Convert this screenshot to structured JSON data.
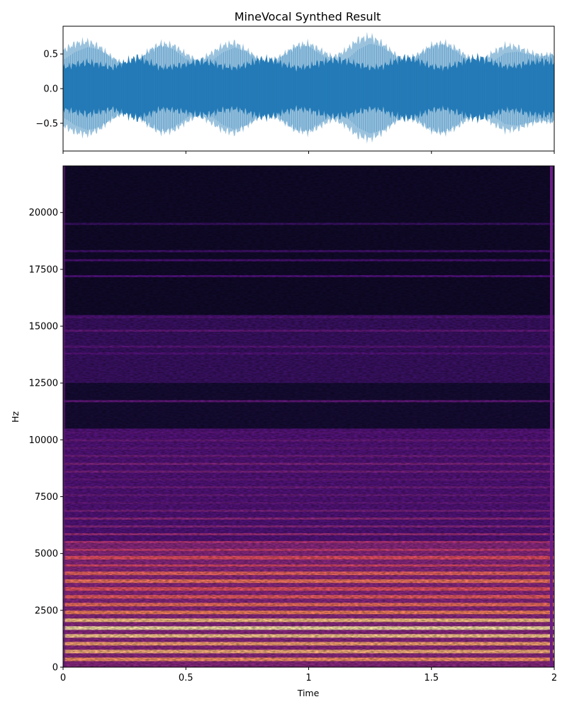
{
  "title": "MineVocal Synthed Result",
  "chart_data": [
    {
      "type": "area",
      "name": "waveform",
      "xlim": [
        0,
        2
      ],
      "ylim": [
        -0.9,
        0.9
      ],
      "y_ticks": [
        {
          "value": 0.5,
          "label": "0.5"
        },
        {
          "value": 0.0,
          "label": "0.0"
        },
        {
          "value": -0.5,
          "label": "−0.5"
        }
      ],
      "x_ticks": [
        0,
        0.5,
        1,
        1.5,
        2
      ],
      "show_x_tick_labels": false,
      "envelope": {
        "x": [
          0,
          0.05,
          0.1,
          0.15,
          0.2,
          0.25,
          0.3,
          0.35,
          0.4,
          0.45,
          0.5,
          0.55,
          0.6,
          0.65,
          0.7,
          0.75,
          0.8,
          0.85,
          0.9,
          0.95,
          1.0,
          1.05,
          1.1,
          1.15,
          1.2,
          1.25,
          1.3,
          1.35,
          1.4,
          1.45,
          1.5,
          1.55,
          1.6,
          1.65,
          1.7,
          1.75,
          1.8,
          1.85,
          1.9,
          1.95,
          2.0
        ],
        "outer": [
          0.55,
          0.65,
          0.68,
          0.6,
          0.45,
          0.35,
          0.4,
          0.55,
          0.65,
          0.62,
          0.5,
          0.4,
          0.5,
          0.62,
          0.66,
          0.55,
          0.42,
          0.38,
          0.5,
          0.62,
          0.65,
          0.55,
          0.45,
          0.55,
          0.7,
          0.75,
          0.65,
          0.5,
          0.4,
          0.5,
          0.62,
          0.66,
          0.58,
          0.45,
          0.4,
          0.52,
          0.62,
          0.6,
          0.52,
          0.48,
          0.5
        ],
        "inner": [
          0.3,
          0.35,
          0.38,
          0.35,
          0.3,
          0.38,
          0.45,
          0.38,
          0.3,
          0.32,
          0.35,
          0.4,
          0.38,
          0.32,
          0.3,
          0.35,
          0.42,
          0.42,
          0.35,
          0.3,
          0.32,
          0.38,
          0.42,
          0.4,
          0.35,
          0.3,
          0.32,
          0.4,
          0.45,
          0.4,
          0.32,
          0.3,
          0.35,
          0.42,
          0.45,
          0.38,
          0.32,
          0.33,
          0.38,
          0.4,
          0.38
        ]
      },
      "colors": {
        "fill": "#1f77b4"
      }
    },
    {
      "type": "heatmap",
      "name": "spectrogram",
      "xlabel": "Time",
      "ylabel": "Hz",
      "xlim": [
        0,
        2
      ],
      "ylim": [
        0,
        22050
      ],
      "x_ticks": [
        {
          "value": 0,
          "label": "0"
        },
        {
          "value": 0.5,
          "label": "0.5"
        },
        {
          "value": 1,
          "label": "1"
        },
        {
          "value": 1.5,
          "label": "1.5"
        },
        {
          "value": 2,
          "label": "2"
        }
      ],
      "y_ticks": [
        0,
        2500,
        5000,
        7500,
        10000,
        12500,
        15000,
        17500,
        20000
      ],
      "colormap": "magma",
      "harmonic_bands": {
        "f0_hz": 344,
        "hz": [
          344,
          688,
          1032,
          1376,
          1720,
          2064,
          2408,
          2752,
          3096,
          3440,
          3784,
          4128,
          4472,
          4816,
          5160,
          5504,
          5848,
          6192,
          6536,
          6880,
          7224,
          7568,
          7912,
          8256,
          8600,
          8944,
          9288,
          9632,
          9976,
          10320,
          11700,
          13800,
          14100,
          14800,
          15400,
          17200,
          17900,
          18300,
          19500
        ],
        "intensity": [
          0.78,
          0.85,
          0.82,
          0.9,
          0.95,
          0.88,
          0.74,
          0.7,
          0.66,
          0.64,
          0.72,
          0.68,
          0.6,
          0.63,
          0.55,
          0.5,
          0.45,
          0.4,
          0.42,
          0.36,
          0.3,
          0.32,
          0.34,
          0.3,
          0.36,
          0.38,
          0.34,
          0.3,
          0.32,
          0.28,
          0.3,
          0.26,
          0.28,
          0.3,
          0.26,
          0.25,
          0.24,
          0.22,
          0.2
        ]
      },
      "noise_regions": [
        {
          "hz": [
            0,
            5500
          ],
          "level": 0.4
        },
        {
          "hz": [
            5500,
            10500
          ],
          "level": 0.26
        },
        {
          "hz": [
            10500,
            12500
          ],
          "level": 0.1
        },
        {
          "hz": [
            12500,
            15500
          ],
          "level": 0.2
        },
        {
          "hz": [
            15500,
            22050
          ],
          "level": 0.08
        }
      ]
    }
  ]
}
